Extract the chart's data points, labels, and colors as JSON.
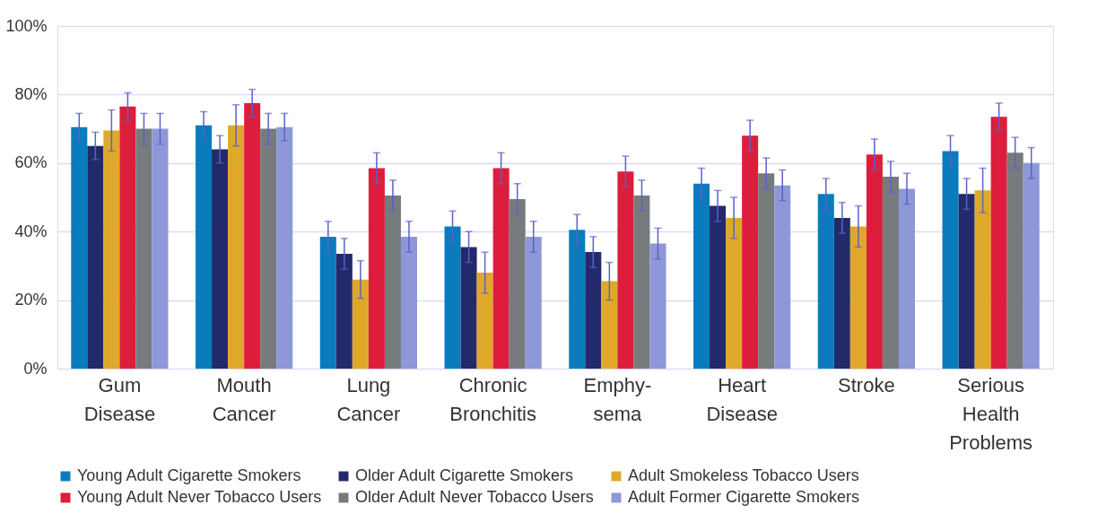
{
  "chart_data": {
    "type": "bar",
    "categories": [
      "Gum\nDisease",
      "Mouth\nCancer",
      "Lung\nCancer",
      "Chronic\nBronchitis",
      "Emphy-\nsema",
      "Heart\nDisease",
      "Stroke",
      "Serious\nHealth\nProblems"
    ],
    "series": [
      {
        "name": "Young Adult Cigarette Smokers",
        "color": "#0a7bbd",
        "values": [
          70.5,
          71,
          38.5,
          41.5,
          40.5,
          54,
          51,
          63.5
        ],
        "errors": [
          4,
          4,
          4.5,
          4.5,
          4.5,
          4.5,
          4.5,
          4.5
        ]
      },
      {
        "name": "Older Adult Cigarette Smokers",
        "color": "#232a6b",
        "values": [
          65,
          64,
          33.5,
          35.5,
          34,
          47.5,
          44,
          51
        ],
        "errors": [
          4,
          4,
          4.5,
          4.5,
          4.5,
          4.5,
          4.5,
          4.5
        ]
      },
      {
        "name": "Adult Smokeless Tobacco Users",
        "color": "#dfa82a",
        "values": [
          69.5,
          71,
          26,
          28,
          25.5,
          44,
          41.5,
          52
        ],
        "errors": [
          6,
          6,
          5.5,
          6,
          5.5,
          6,
          6,
          6.5
        ]
      },
      {
        "name": "Young Adult Never Tobacco Users",
        "color": "#dc1e3c",
        "values": [
          76.5,
          77.5,
          58.5,
          58.5,
          57.5,
          68,
          62.5,
          73.5
        ],
        "errors": [
          4,
          4,
          4.5,
          4.5,
          4.5,
          4.5,
          4.5,
          4
        ]
      },
      {
        "name": "Older Adult Never Tobacco Users",
        "color": "#777b7e",
        "values": [
          70,
          70,
          50.5,
          49.5,
          50.5,
          57,
          56,
          63
        ],
        "errors": [
          4.5,
          4.5,
          4.5,
          4.5,
          4.5,
          4.5,
          4.5,
          4.5
        ]
      },
      {
        "name": "Adult Former Cigarette Smokers",
        "color": "#8e98d8",
        "values": [
          70,
          70.5,
          38.5,
          38.5,
          36.5,
          53.5,
          52.5,
          60
        ],
        "errors": [
          4.5,
          4,
          4.5,
          4.5,
          4.5,
          4.5,
          4.5,
          4.5
        ]
      }
    ],
    "ylim": [
      0,
      100
    ],
    "yticks": [
      {
        "value": 0,
        "label": "0%"
      },
      {
        "value": 20,
        "label": "20%"
      },
      {
        "value": 40,
        "label": "40%"
      },
      {
        "value": 60,
        "label": "60%"
      },
      {
        "value": 80,
        "label": "80%"
      },
      {
        "value": 100,
        "label": "100%"
      }
    ],
    "grid": "y",
    "legend": "bottom"
  }
}
